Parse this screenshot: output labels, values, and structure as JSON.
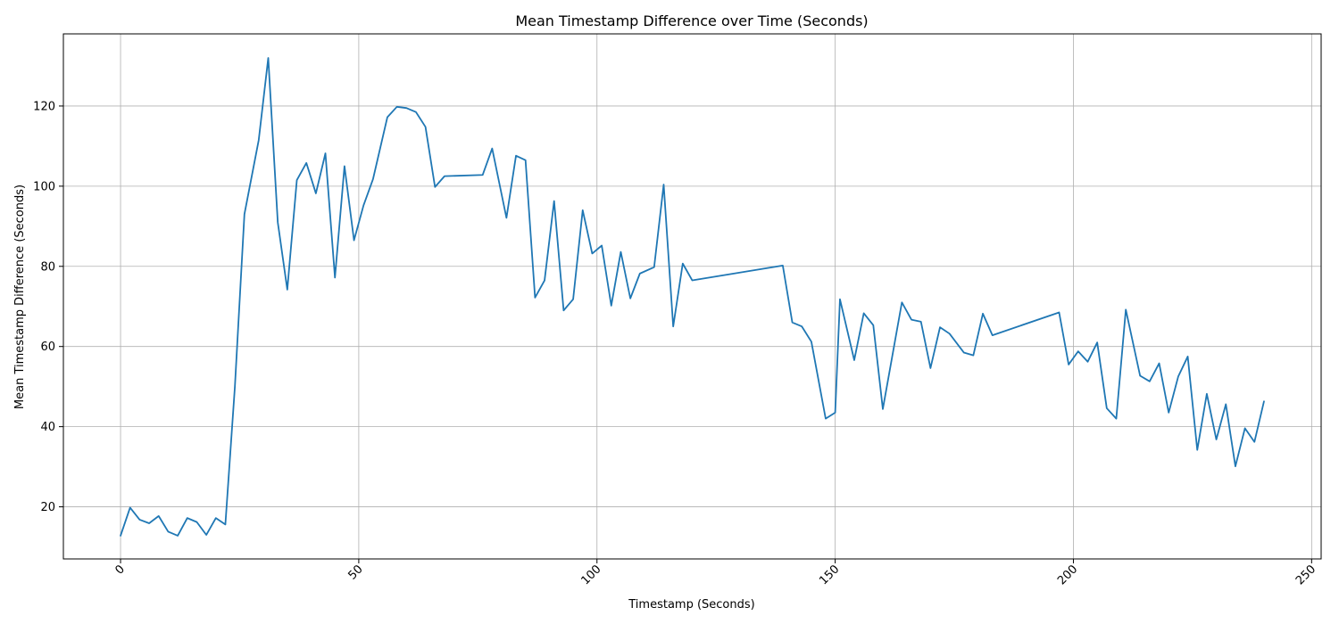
{
  "chart_data": {
    "type": "line",
    "title": "Mean Timestamp Difference over Time (Seconds)",
    "xlabel": "Timestamp (Seconds)",
    "ylabel": "Mean Timestamp Difference (Seconds)",
    "xlim": [
      -12,
      252
    ],
    "ylim": [
      7,
      138
    ],
    "xticks": [
      0,
      50,
      100,
      150,
      200,
      250
    ],
    "xtick_labels": [
      "0",
      "50",
      "100",
      "150",
      "200",
      "250"
    ],
    "yticks": [
      20,
      40,
      60,
      80,
      100,
      120
    ],
    "ytick_labels": [
      "20",
      "40",
      "60",
      "80",
      "100",
      "120"
    ],
    "grid": true,
    "line_color": "#1f77b4",
    "series": [
      {
        "x": [
          0,
          2,
          4,
          6,
          8,
          10,
          12,
          14,
          16,
          18,
          20,
          22,
          24,
          26,
          29,
          31,
          33,
          35,
          37,
          39,
          41,
          43,
          45,
          47,
          49,
          51,
          53,
          56,
          58,
          60,
          62,
          64,
          66,
          68,
          76,
          78,
          81,
          83,
          85,
          87,
          89,
          91,
          93,
          95,
          97,
          99,
          101,
          103,
          105,
          107,
          109,
          112,
          114,
          116,
          118,
          120,
          139,
          141,
          143,
          145,
          148,
          150,
          151,
          154,
          156,
          158,
          160,
          164,
          166,
          168,
          170,
          172,
          174,
          177,
          179,
          181,
          183,
          197,
          199,
          201,
          203,
          205,
          207,
          209,
          211,
          214,
          216,
          218,
          220,
          222,
          224,
          226,
          228,
          230,
          232,
          234,
          236,
          238,
          240
        ],
        "values": [
          12.8,
          19.8,
          16.8,
          15.9,
          17.7,
          13.8,
          12.8,
          17.2,
          16.2,
          13.0,
          17.2,
          15.6,
          50.0,
          93.0,
          111.5,
          132.0,
          91.0,
          74.2,
          101.5,
          105.8,
          98.2,
          108.2,
          77.2,
          105.0,
          86.5,
          95.2,
          101.8,
          117.2,
          119.8,
          119.5,
          118.5,
          114.8,
          99.8,
          102.5,
          102.8,
          109.4,
          92.1,
          107.6,
          106.5,
          72.2,
          76.5,
          96.3,
          69.0,
          71.8,
          94.0,
          83.2,
          85.2,
          70.2,
          83.6,
          72.0,
          78.2,
          79.8,
          100.4,
          65.0,
          80.7,
          76.5,
          80.2,
          66.0,
          65.0,
          61.2,
          42.0,
          43.5,
          71.8,
          56.6,
          68.3,
          65.3,
          44.4,
          71.0,
          66.7,
          66.2,
          54.6,
          64.8,
          63.2,
          58.5,
          57.8,
          68.2,
          62.8,
          68.5,
          55.5,
          58.8,
          56.2,
          61.0,
          44.6,
          42.0,
          69.2,
          52.7,
          51.3,
          55.8,
          43.5,
          52.5,
          57.5,
          34.2,
          48.2,
          36.8,
          45.6,
          30.1,
          39.6,
          36.2,
          46.3
        ]
      }
    ]
  }
}
